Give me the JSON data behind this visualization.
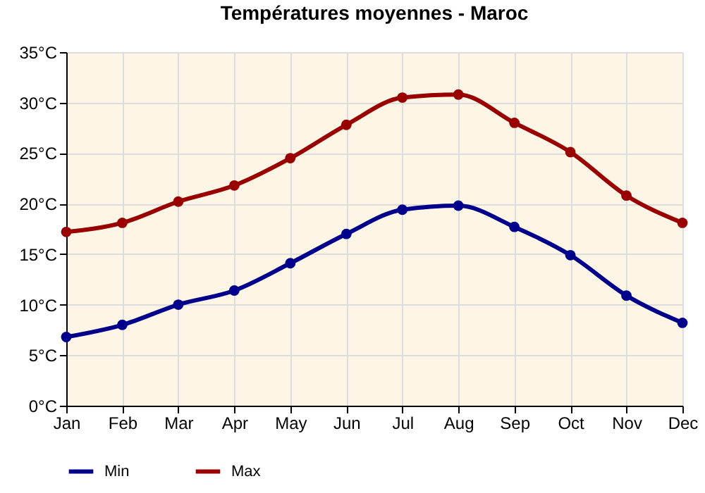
{
  "chart_data": {
    "type": "line",
    "title": "Températures moyennes - Maroc",
    "categories": [
      "Jan",
      "Feb",
      "Mar",
      "Apr",
      "May",
      "Jun",
      "Jul",
      "Aug",
      "Sep",
      "Oct",
      "Nov",
      "Dec"
    ],
    "series": [
      {
        "name": "Min",
        "color": "#00008b",
        "values": [
          6.8,
          8.0,
          10.0,
          11.4,
          14.1,
          17.0,
          19.4,
          19.8,
          17.7,
          14.9,
          10.9,
          8.2
        ]
      },
      {
        "name": "Max",
        "color": "#990000",
        "values": [
          17.2,
          18.1,
          20.2,
          21.8,
          24.5,
          27.8,
          30.5,
          30.8,
          28.0,
          25.1,
          20.8,
          18.1
        ]
      }
    ],
    "ylim": [
      0,
      35
    ],
    "yticks": [
      {
        "value": 0,
        "label": "0°C"
      },
      {
        "value": 5,
        "label": "5°C"
      },
      {
        "value": 10,
        "label": "10°C"
      },
      {
        "value": 15,
        "label": "15°C"
      },
      {
        "value": 20,
        "label": "20°C"
      },
      {
        "value": 25,
        "label": "25°C"
      },
      {
        "value": 30,
        "label": "30°C"
      },
      {
        "value": 35,
        "label": "35°C"
      }
    ],
    "grid": true,
    "legend": "bottom left",
    "marker": "circle",
    "line_style": "solid"
  }
}
